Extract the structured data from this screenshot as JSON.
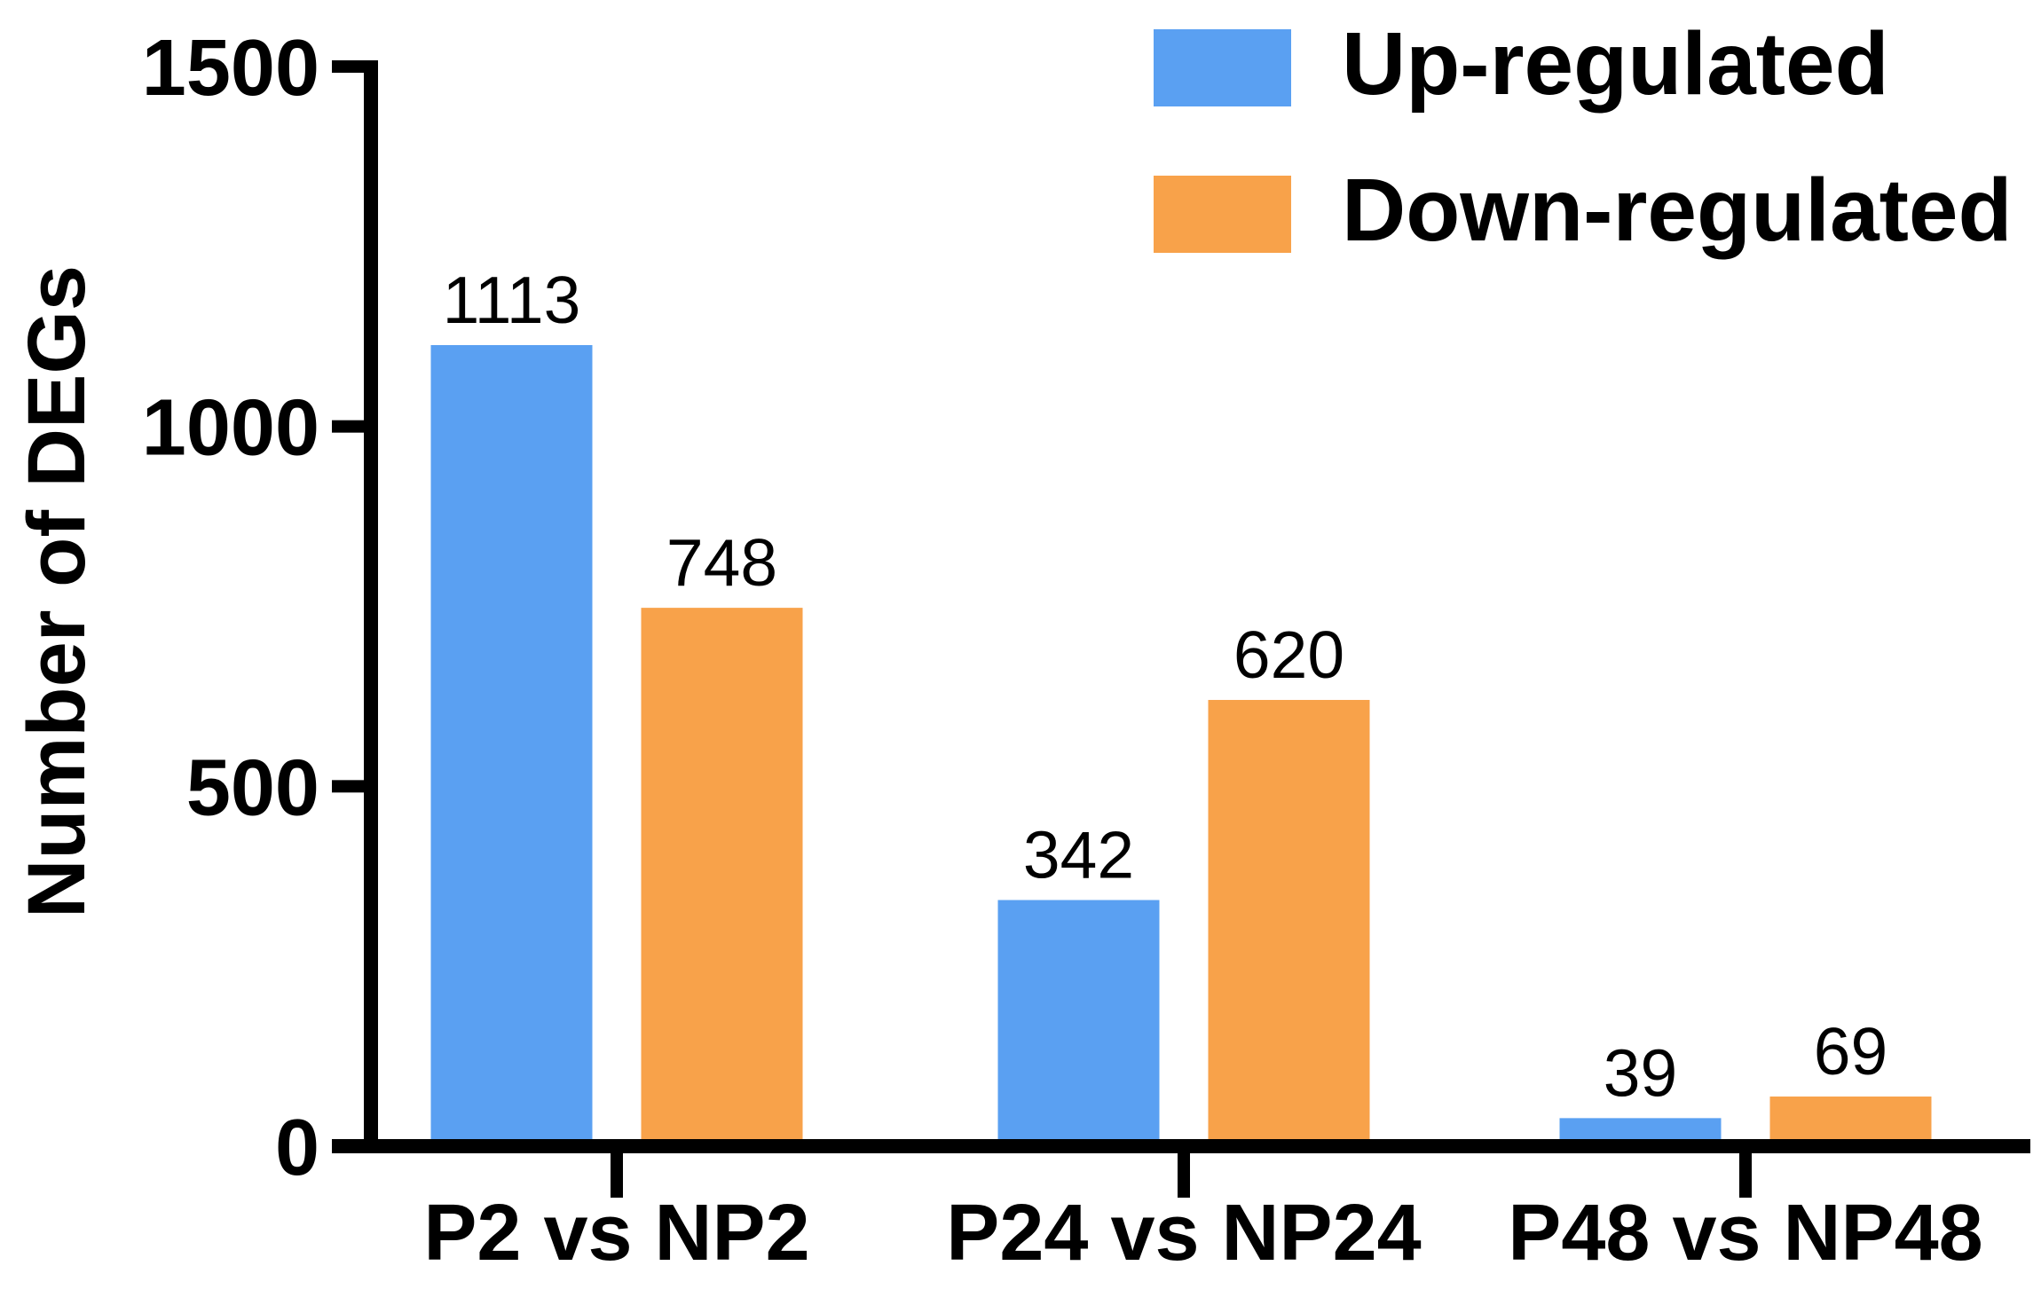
{
  "figure": {
    "background": "#ffffff",
    "axis_color": "#000000",
    "text_color": "#000000"
  },
  "chart_data": {
    "type": "bar",
    "title": "",
    "categories": [
      "P2 vs NP2",
      "P24 vs NP24",
      "P48 vs NP48"
    ],
    "series": [
      {
        "name": "Up-regulated",
        "color": "#5AA0F2",
        "values": [
          1113,
          342,
          39
        ]
      },
      {
        "name": "Down-regulated",
        "color": "#F8A24A",
        "values": [
          748,
          620,
          69
        ]
      }
    ],
    "bar_value_labels": [
      [
        "1113",
        "342",
        "39"
      ],
      [
        "748",
        "620",
        "69"
      ]
    ],
    "xlabel": "",
    "ylabel": "Number of DEGs",
    "ylim": [
      0,
      1500
    ],
    "yticks": [
      "0",
      "500",
      "1000",
      "1500"
    ],
    "ytick_values": [
      0,
      500,
      1000,
      1500
    ],
    "grid": false,
    "legend_position": "top-right",
    "legend": [
      {
        "label": "Up-regulated",
        "color": "#5AA0F2"
      },
      {
        "label": "Down-regulated",
        "color": "#F8A24A"
      }
    ]
  }
}
